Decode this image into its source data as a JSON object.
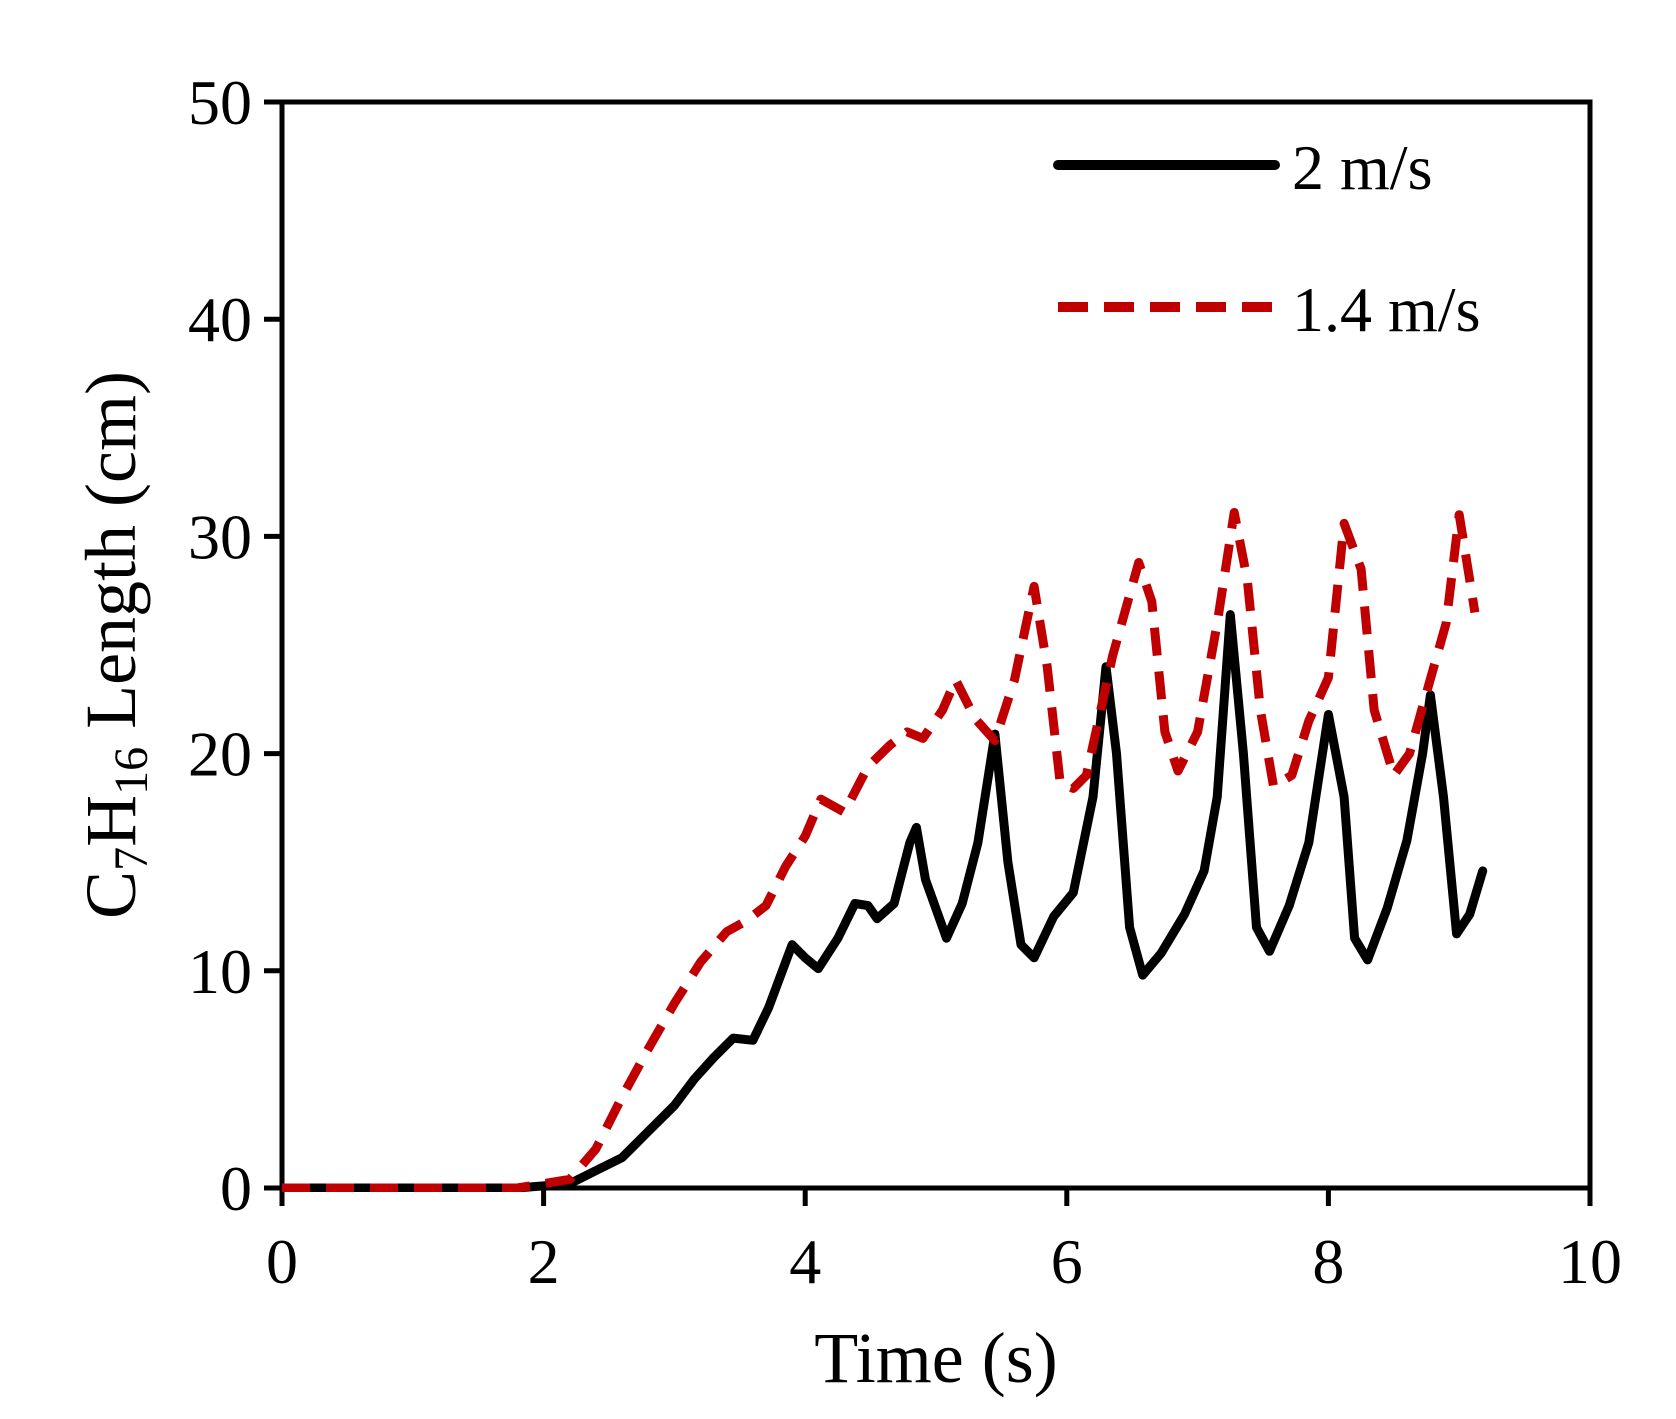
{
  "chart_data": {
    "type": "line",
    "title": "",
    "xlabel": "Time (s)",
    "ylabel_parts": [
      "C",
      "7",
      "H",
      "16",
      " Length (cm)"
    ],
    "xlim": [
      0,
      10
    ],
    "ylim": [
      0,
      50
    ],
    "xticks": [
      0,
      2,
      4,
      6,
      8,
      10
    ],
    "xtick_labels": [
      "0",
      "2",
      "4",
      "6",
      "8",
      "10"
    ],
    "yticks": [
      0,
      10,
      20,
      30,
      40,
      50
    ],
    "ytick_labels": [
      "0",
      "10",
      "20",
      "30",
      "40",
      "50"
    ],
    "grid": false,
    "legend_position": "top-right",
    "series": [
      {
        "name": "2 m/s",
        "color": "#000000",
        "style": "solid",
        "points": [
          [
            0,
            0
          ],
          [
            1.8,
            0
          ],
          [
            2.2,
            0.2
          ],
          [
            2.4,
            0.8
          ],
          [
            2.6,
            1.4
          ],
          [
            2.8,
            2.6
          ],
          [
            3.0,
            3.8
          ],
          [
            3.15,
            5.0
          ],
          [
            3.3,
            6.0
          ],
          [
            3.45,
            6.9
          ],
          [
            3.6,
            6.8
          ],
          [
            3.72,
            8.3
          ],
          [
            3.9,
            11.2
          ],
          [
            4.0,
            10.6
          ],
          [
            4.1,
            10.1
          ],
          [
            4.25,
            11.5
          ],
          [
            4.38,
            13.1
          ],
          [
            4.48,
            13.0
          ],
          [
            4.55,
            12.4
          ],
          [
            4.68,
            13.1
          ],
          [
            4.8,
            15.9
          ],
          [
            4.85,
            16.6
          ],
          [
            4.92,
            14.2
          ],
          [
            5.08,
            11.5
          ],
          [
            5.2,
            13.1
          ],
          [
            5.32,
            15.9
          ],
          [
            5.45,
            20.9
          ],
          [
            5.55,
            15.0
          ],
          [
            5.65,
            11.2
          ],
          [
            5.75,
            10.6
          ],
          [
            5.9,
            12.5
          ],
          [
            6.05,
            13.6
          ],
          [
            6.2,
            18.0
          ],
          [
            6.3,
            24.0
          ],
          [
            6.38,
            20.0
          ],
          [
            6.48,
            12.0
          ],
          [
            6.58,
            9.8
          ],
          [
            6.72,
            10.8
          ],
          [
            6.9,
            12.6
          ],
          [
            7.05,
            14.6
          ],
          [
            7.15,
            18.0
          ],
          [
            7.25,
            26.4
          ],
          [
            7.35,
            20.0
          ],
          [
            7.45,
            12.0
          ],
          [
            7.55,
            10.9
          ],
          [
            7.7,
            13.0
          ],
          [
            7.85,
            15.9
          ],
          [
            8.0,
            21.8
          ],
          [
            8.12,
            18.0
          ],
          [
            8.2,
            11.5
          ],
          [
            8.3,
            10.5
          ],
          [
            8.45,
            12.9
          ],
          [
            8.6,
            16.0
          ],
          [
            8.72,
            20.0
          ],
          [
            8.78,
            22.7
          ],
          [
            8.88,
            18.0
          ],
          [
            8.98,
            11.7
          ],
          [
            9.08,
            12.6
          ],
          [
            9.18,
            14.6
          ]
        ]
      },
      {
        "name": "1.4 m/s",
        "color": "#c00000",
        "style": "dashed",
        "points": [
          [
            0,
            0
          ],
          [
            1.8,
            0
          ],
          [
            2.2,
            0.4
          ],
          [
            2.4,
            1.8
          ],
          [
            2.6,
            4.2
          ],
          [
            2.8,
            6.4
          ],
          [
            3.0,
            8.5
          ],
          [
            3.2,
            10.4
          ],
          [
            3.4,
            11.8
          ],
          [
            3.55,
            12.3
          ],
          [
            3.7,
            13.0
          ],
          [
            3.85,
            14.8
          ],
          [
            4.0,
            16.2
          ],
          [
            4.12,
            17.9
          ],
          [
            4.3,
            17.3
          ],
          [
            4.48,
            19.4
          ],
          [
            4.65,
            20.4
          ],
          [
            4.78,
            21.0
          ],
          [
            4.9,
            20.7
          ],
          [
            5.05,
            22.0
          ],
          [
            5.15,
            23.4
          ],
          [
            5.3,
            21.6
          ],
          [
            5.45,
            20.6
          ],
          [
            5.6,
            23.4
          ],
          [
            5.75,
            27.7
          ],
          [
            5.85,
            24.0
          ],
          [
            5.95,
            18.6
          ],
          [
            6.05,
            18.4
          ],
          [
            6.15,
            19.0
          ],
          [
            6.35,
            24.5
          ],
          [
            6.55,
            28.8
          ],
          [
            6.65,
            27.0
          ],
          [
            6.75,
            21.0
          ],
          [
            6.85,
            19.2
          ],
          [
            7.0,
            21.0
          ],
          [
            7.15,
            26.0
          ],
          [
            7.28,
            31.1
          ],
          [
            7.38,
            28.0
          ],
          [
            7.48,
            22.0
          ],
          [
            7.58,
            18.5
          ],
          [
            7.72,
            19.0
          ],
          [
            7.85,
            21.5
          ],
          [
            8.0,
            23.5
          ],
          [
            8.12,
            30.6
          ],
          [
            8.25,
            28.5
          ],
          [
            8.35,
            22.0
          ],
          [
            8.5,
            19.0
          ],
          [
            8.62,
            20.0
          ],
          [
            8.75,
            22.8
          ],
          [
            8.9,
            26.0
          ],
          [
            9.0,
            31.0
          ],
          [
            9.08,
            28.0
          ],
          [
            9.12,
            26.5
          ]
        ]
      }
    ]
  }
}
